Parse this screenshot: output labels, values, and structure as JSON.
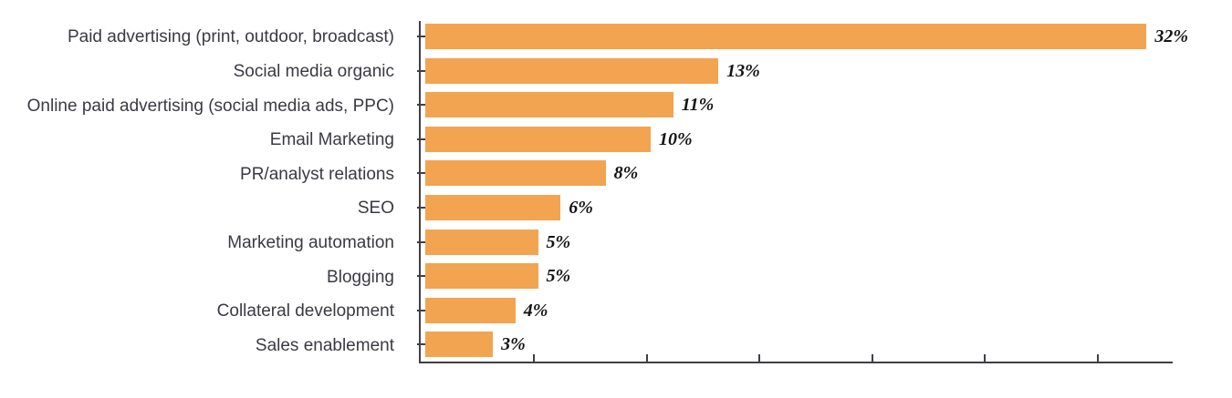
{
  "chart_data": {
    "type": "bar",
    "orientation": "horizontal",
    "title": "",
    "xlabel": "",
    "ylabel": "",
    "categories": [
      "Paid advertising (print, outdoor, broadcast)",
      "Social media organic",
      "Online paid advertising (social media ads, PPC)",
      "Email Marketing",
      "PR/analyst relations",
      "SEO",
      "Marketing automation",
      "Blogging",
      "Collateral development",
      "Sales enablement"
    ],
    "values": [
      32,
      13,
      11,
      10,
      8,
      6,
      5,
      5,
      4,
      3
    ],
    "value_labels": [
      "32%",
      "13%",
      "11%",
      "10%",
      "8%",
      "6%",
      "5%",
      "5%",
      "4%",
      "3%"
    ],
    "xlim": [
      0,
      33.4
    ],
    "x_ticks": [
      5,
      10,
      15,
      20,
      25,
      30
    ],
    "x_tick_labels_visible": false,
    "grid": false,
    "legend": null,
    "colors": {
      "bar": "#f2a451",
      "axis": "#3f3f46",
      "category_text": "#3a3a43",
      "value_text": "#141414",
      "background": "#ffffff"
    }
  }
}
